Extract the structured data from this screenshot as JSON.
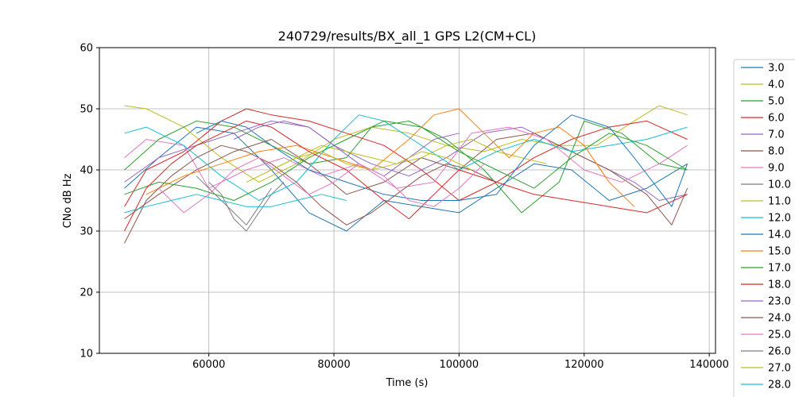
{
  "chart_data": {
    "type": "line",
    "title": "240729/results/BX_all_1 GPS L2(CM+CL)",
    "xlabel": "Time (s)",
    "ylabel": "CNo dB Hz",
    "xlim": [
      42500,
      141000
    ],
    "ylim": [
      10,
      60
    ],
    "xticks": [
      60000,
      80000,
      100000,
      120000,
      140000
    ],
    "yticks": [
      10,
      20,
      30,
      40,
      50,
      60
    ],
    "grid": true,
    "legend_position": "right (outside, clipped)",
    "series": [
      {
        "name": "3.0",
        "color": "#1f77b4",
        "x": [
          46500,
          52000,
          58000,
          64000,
          70000,
          76000,
          82000,
          88000,
          94000,
          100000,
          106000,
          112000,
          118000,
          124000,
          130000,
          136500
        ],
        "y": [
          37,
          42,
          47,
          46,
          40,
          33,
          30,
          35,
          34,
          33,
          37,
          41,
          40,
          35,
          37,
          41
        ]
      },
      {
        "name": "4.0",
        "color": "#bcbd22",
        "x": [
          46500,
          50000,
          56000,
          62000,
          68000,
          74000,
          80000,
          86000,
          92000,
          98000,
          104000,
          110000,
          116000,
          122000,
          128000,
          132000,
          136500
        ],
        "y": [
          50.5,
          50,
          47,
          42,
          38,
          41,
          45,
          47,
          46,
          44,
          43,
          45,
          44,
          44,
          48,
          50.5,
          49
        ]
      },
      {
        "name": "5.0",
        "color": "#2ca02c",
        "x": [
          46500,
          52000,
          58000,
          64000,
          70000,
          76000,
          82000,
          86000,
          92000,
          98000,
          104000,
          110000,
          116000,
          120000,
          126000,
          132000,
          136500
        ],
        "y": [
          40,
          45,
          48,
          47,
          44,
          41,
          42,
          47,
          48,
          45,
          40,
          33,
          38,
          48,
          46,
          41,
          40
        ]
      },
      {
        "name": "6.0",
        "color": "#d62728",
        "x": [
          46500,
          50000,
          56000,
          62000,
          66000,
          70000,
          76000,
          82000,
          88000,
          94000,
          100000,
          106000,
          112000,
          118000,
          124000,
          130000,
          136500
        ],
        "y": [
          34,
          40,
          43,
          48,
          50,
          49,
          48,
          46,
          44,
          40,
          35,
          38,
          42,
          45,
          47,
          48,
          45
        ]
      },
      {
        "name": "7.0",
        "color": "#9467bd",
        "x": [
          46500,
          52000,
          58000,
          64000,
          70000,
          76000,
          80000,
          86000,
          92000,
          98000,
          104000,
          110000,
          116000,
          122000,
          128000,
          132000,
          136500
        ],
        "y": [
          38,
          42,
          44,
          46,
          48,
          47,
          44,
          41,
          39,
          42,
          46,
          47,
          44,
          41,
          38,
          35,
          36
        ]
      },
      {
        "name": "8.0",
        "color": "#8c564b",
        "x": [
          46500,
          52000,
          58000,
          64000,
          70000,
          76000,
          82000,
          88000,
          94000,
          100000,
          106000,
          112000,
          118000,
          124000,
          130000,
          134000,
          136500
        ],
        "y": [
          32,
          36,
          40,
          43,
          45,
          41,
          36,
          38,
          42,
          40,
          45,
          46,
          43,
          40,
          36,
          31,
          37
        ]
      },
      {
        "name": "9.0",
        "color": "#e377c2",
        "x": [
          46500,
          50000,
          56000,
          60000,
          66000,
          72000,
          78000,
          84000,
          90000,
          96000,
          102000,
          108000,
          114000,
          120000,
          126000,
          132000,
          136500
        ],
        "y": [
          42,
          45,
          44,
          37,
          40,
          42,
          39,
          41,
          37,
          38,
          46,
          47,
          45,
          40,
          38,
          41,
          44
        ]
      },
      {
        "name": "10.0",
        "color": "#7f7f7f",
        "x": [
          60000,
          62000,
          64000,
          66000,
          68000,
          70000,
          72000
        ],
        "y": [
          38,
          36,
          32,
          30,
          33,
          36,
          38
        ]
      },
      {
        "name": "11.0",
        "color": "#bcbd22",
        "x": [
          70000,
          74000,
          78000,
          82000,
          86000,
          90000,
          94000,
          98000,
          102000,
          106000,
          110000,
          114000
        ],
        "y": [
          40,
          42,
          44,
          43,
          42,
          41,
          42,
          44,
          45,
          43,
          42,
          41
        ]
      },
      {
        "name": "12.0",
        "color": "#17becf",
        "x": [
          46500,
          50000,
          56000,
          62000,
          68000,
          74000,
          80000,
          84000,
          88000,
          94000,
          100000,
          106000,
          112000,
          118000,
          124000,
          130000,
          136500
        ],
        "y": [
          46,
          47,
          44,
          39,
          35,
          38,
          45,
          49,
          48,
          44,
          40,
          43,
          45,
          43,
          44,
          45,
          47
        ]
      },
      {
        "name": "14.0",
        "color": "#1f77b4",
        "x": [
          58000,
          62000,
          66000,
          70000,
          76000,
          82000,
          88000,
          94000,
          100000,
          106000,
          112000,
          118000,
          124000,
          128000,
          134000,
          136500
        ],
        "y": [
          46,
          48,
          47,
          44,
          40,
          38,
          36,
          35,
          35,
          36,
          44,
          49,
          47,
          42,
          34,
          41
        ]
      },
      {
        "name": "15.0",
        "color": "#ff7f0e",
        "x": [
          50000,
          56000,
          62000,
          68000,
          74000,
          80000,
          86000,
          92000,
          96000,
          100000,
          104000,
          108000,
          112000,
          116000,
          120000,
          124000,
          128000
        ],
        "y": [
          36,
          39,
          41,
          43,
          44,
          42,
          40,
          45,
          49,
          50,
          46,
          42,
          46,
          47,
          44,
          38,
          34
        ]
      },
      {
        "name": "17.0",
        "color": "#2ca02c",
        "x": [
          46500,
          52000,
          58000,
          64000,
          70000,
          76000,
          82000,
          88000,
          94000,
          100000,
          106000,
          112000,
          118000,
          124000,
          130000,
          136500
        ],
        "y": [
          36,
          38,
          37,
          35,
          38,
          42,
          45,
          48,
          47,
          43,
          40,
          37,
          42,
          46,
          44,
          40
        ]
      },
      {
        "name": "18.0",
        "color": "#d62728",
        "x": [
          46500,
          50000,
          54000,
          58000,
          62000,
          66000,
          70000,
          76000,
          82000,
          88000,
          92000,
          96000,
          100000,
          106000,
          112000,
          118000,
          124000,
          130000,
          136500
        ],
        "y": [
          30,
          37,
          41,
          44,
          46,
          48,
          47,
          43,
          40,
          35,
          32,
          36,
          40,
          38,
          36,
          35,
          34,
          33,
          36
        ]
      },
      {
        "name": "23.0",
        "color": "#9467bd",
        "x": [
          64000,
          68000,
          72000,
          76000,
          80000,
          84000,
          88000,
          92000,
          96000,
          100000
        ],
        "y": [
          45,
          47,
          48,
          47,
          44,
          41,
          39,
          42,
          45,
          46
        ]
      },
      {
        "name": "24.0",
        "color": "#8c564b",
        "x": [
          46500,
          50000,
          54000,
          58000,
          62000,
          66000,
          70000,
          74000,
          78000,
          82000,
          86000,
          90000,
          94000,
          98000,
          102000,
          106000
        ],
        "y": [
          28,
          35,
          39,
          42,
          44,
          43,
          41,
          38,
          34,
          31,
          33,
          36,
          39,
          41,
          40,
          38
        ]
      },
      {
        "name": "25.0",
        "color": "#e377c2",
        "x": [
          52000,
          56000,
          60000,
          64000,
          68000,
          72000,
          76000,
          80000,
          84000,
          88000,
          92000,
          96000,
          100000,
          104000
        ],
        "y": [
          37,
          33,
          36,
          40,
          42,
          39,
          36,
          38,
          41,
          39,
          35,
          34,
          37,
          41
        ]
      },
      {
        "name": "26.0",
        "color": "#7f7f7f",
        "x": [
          58000,
          60000,
          62000,
          64000,
          66000,
          68000,
          70000
        ],
        "y": [
          39,
          37,
          35,
          33,
          31,
          34,
          37
        ]
      },
      {
        "name": "27.0",
        "color": "#bcbd22",
        "x": [
          66000,
          70000,
          74000,
          78000,
          82000,
          86000,
          90000,
          94000,
          98000,
          102000
        ],
        "y": [
          38,
          40,
          42,
          43,
          41,
          40,
          41,
          43,
          42,
          40
        ]
      },
      {
        "name": "28.0",
        "color": "#17becf",
        "x": [
          46500,
          50000,
          54000,
          58000,
          62000,
          66000,
          70000,
          74000,
          78000,
          82000
        ],
        "y": [
          33,
          34,
          35,
          36,
          35,
          34,
          34,
          35,
          36,
          35
        ]
      }
    ]
  }
}
